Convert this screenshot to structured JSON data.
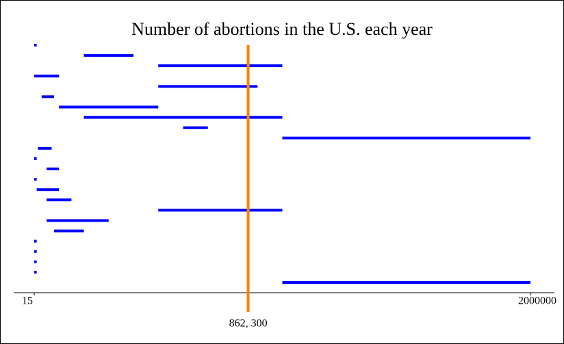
{
  "chart_data": {
    "type": "interval",
    "title": "Number of abortions in the U.S. each year",
    "intervals": [
      [
        15,
        10000
      ],
      [
        200000,
        400000
      ],
      [
        500000,
        1000000
      ],
      [
        15,
        100000
      ],
      [
        500000,
        900000
      ],
      [
        30000,
        80000
      ],
      [
        100000,
        500000
      ],
      [
        200000,
        1000000
      ],
      [
        600000,
        700000
      ],
      [
        1000000,
        2000000
      ],
      [
        15000,
        70000
      ],
      [
        15,
        10000
      ],
      [
        50000,
        100000
      ],
      [
        15,
        10000
      ],
      [
        10000,
        100000
      ],
      [
        50000,
        150000
      ],
      [
        500000,
        1000000
      ],
      [
        50000,
        300000
      ],
      [
        80000,
        200000
      ],
      [
        15,
        10000
      ],
      [
        15,
        10000
      ],
      [
        15,
        10000
      ],
      [
        15,
        10000
      ],
      [
        1000000,
        2000000
      ]
    ],
    "color": "#0000ff",
    "reference": {
      "value": 862300,
      "label": "862, 300",
      "color": "#ff8000"
    },
    "xlim": [
      15,
      2000000
    ],
    "xticks": [
      15,
      2000000
    ]
  }
}
